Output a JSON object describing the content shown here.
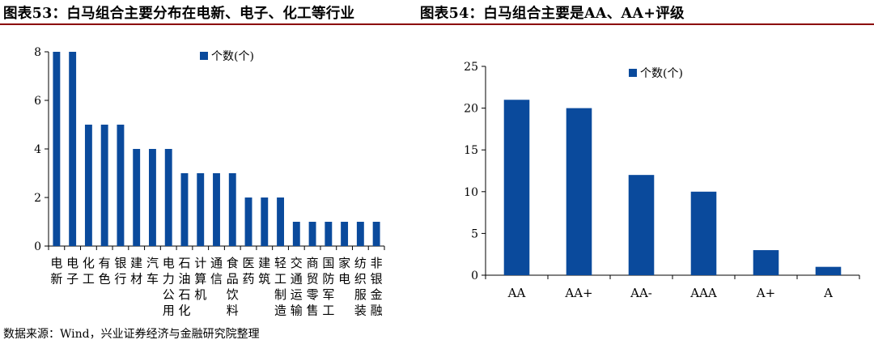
{
  "titles": {
    "left": "图表53：白马组合主要分布在电新、电子、化工等行业",
    "right": "图表54：白马组合主要是AA、AA+评级"
  },
  "source": "数据来源：Wind，兴业证券经济与金融研究院整理",
  "colors": {
    "bar": "#0a4a9c",
    "axis": "#000000",
    "title_rule": "#8b0000"
  },
  "chart_data": [
    {
      "type": "bar",
      "categories": [
        "电新",
        "电子",
        "化工",
        "有色",
        "银行",
        "建材",
        "汽车",
        "电力公用",
        "石油石化",
        "计算机",
        "通信",
        "食品饮料",
        "医药",
        "建筑",
        "轻工制造",
        "交通运输",
        "商贸零售",
        "国防军工",
        "家电",
        "纺织服装",
        "非银金融"
      ],
      "series": [
        {
          "name": "个数(个)",
          "values": [
            8,
            8,
            5,
            5,
            5,
            4,
            4,
            4,
            3,
            3,
            3,
            3,
            2,
            2,
            2,
            1,
            1,
            1,
            1,
            1,
            1
          ]
        }
      ],
      "yticks": [
        "0",
        "2",
        "4",
        "6",
        "8"
      ],
      "ylim": [
        0,
        8
      ],
      "xlabel": "",
      "ylabel": "",
      "legend": "top-center",
      "grid": false,
      "category_text_vertical": true
    },
    {
      "type": "bar",
      "categories": [
        "AA",
        "AA+",
        "AA-",
        "AAA",
        "A+",
        "A"
      ],
      "series": [
        {
          "name": "个数(个)",
          "values": [
            21,
            20,
            12,
            10,
            3,
            1
          ]
        }
      ],
      "yticks": [
        "0",
        "5",
        "10",
        "15",
        "20",
        "25"
      ],
      "ylim": [
        0,
        25
      ],
      "xlabel": "",
      "ylabel": "",
      "legend": "top-center",
      "grid": false
    }
  ]
}
